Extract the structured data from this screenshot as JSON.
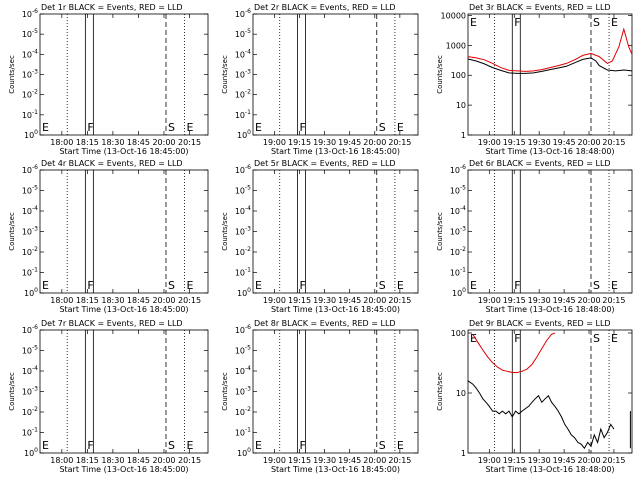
{
  "chart_data": {
    "type": "line",
    "grid": "3x3",
    "panels": [
      {
        "id": "det1",
        "title": "Det 1r BLACK = Events, RED = LLD",
        "ylabel": "Counts/sec",
        "xlabel": "Start Time (13-Oct-16 18:45:00)",
        "x_ticks": [
          "18:00",
          "18:15",
          "18:30",
          "18:45",
          "20:00",
          "20:15"
        ],
        "y_ticks": [
          "10^0",
          "10^-1",
          "10^-2",
          "10^-3",
          "10^-4",
          "10^-5",
          "10^-6"
        ],
        "y_scale": "log",
        "y_ticks_log": [
          0,
          -1,
          -2,
          -3,
          -4,
          -5,
          -6
        ],
        "ylim_log": [
          0,
          -6
        ],
        "markers": [
          {
            "label": "E",
            "style": "dotted"
          },
          {
            "label": "F",
            "style": "solid"
          },
          {
            "label": "S",
            "style": "dashed"
          },
          {
            "label": "E",
            "style": "dotted"
          }
        ],
        "series": []
      },
      {
        "id": "det2",
        "title": "Det 2r BLACK = Events, RED = LLD",
        "ylabel": "Counts/sec",
        "xlabel": "Start Time (13-Oct-16 18:45:00)",
        "x_ticks": [
          "19:00",
          "19:15",
          "19:30",
          "19:45",
          "20:00",
          "20:15"
        ],
        "y_ticks": [
          "10^0",
          "10^-1",
          "10^-2",
          "10^-3",
          "10^-4",
          "10^-5",
          "10^-6"
        ],
        "y_scale": "log",
        "y_ticks_log": [
          0,
          -1,
          -2,
          -3,
          -4,
          -5,
          -6
        ],
        "ylim_log": [
          0,
          -6
        ],
        "markers": [
          {
            "label": "E",
            "style": "dotted"
          },
          {
            "label": "F",
            "style": "solid"
          },
          {
            "label": "S",
            "style": "dashed"
          },
          {
            "label": "E",
            "style": "dotted"
          }
        ],
        "series": []
      },
      {
        "id": "det3",
        "title": "Det 3r BLACK = Events, RED = LLD",
        "ylabel": "Counts/sec",
        "xlabel": "Start Time (13-Oct-16 18:48:00)",
        "x_ticks": [
          "19:00",
          "19:15",
          "19:30",
          "19:45",
          "20:00",
          "20:15"
        ],
        "y_ticks": [
          "1",
          "10",
          "100",
          "1000",
          "10000"
        ],
        "y_scale": "log",
        "y_ticks_log": [
          0,
          1,
          2,
          3,
          4
        ],
        "ylim_log": [
          0,
          4.05
        ],
        "markers": [
          {
            "label": "E",
            "style": "dotted"
          },
          {
            "label": "F",
            "style": "solid"
          },
          {
            "label": "S",
            "style": "dashed"
          },
          {
            "label": "E",
            "style": "dotted"
          }
        ],
        "series": [
          {
            "color": "#000000",
            "x": [
              0,
              5,
              10,
              15,
              20,
              25,
              30,
              35,
              40,
              45,
              50,
              55,
              60,
              65,
              70,
              75,
              78,
              80,
              85,
              90,
              95,
              100
            ],
            "y": [
              350,
              300,
              240,
              180,
              145,
              120,
              115,
              115,
              120,
              135,
              155,
              175,
              200,
              260,
              340,
              380,
              300,
              210,
              150,
              140,
              150,
              140
            ]
          },
          {
            "color": "#e00000",
            "x": [
              0,
              5,
              10,
              15,
              20,
              25,
              30,
              35,
              40,
              45,
              50,
              55,
              60,
              65,
              70,
              75,
              80,
              85,
              88,
              92,
              95,
              98,
              100
            ],
            "y": [
              420,
              380,
              330,
              250,
              180,
              145,
              140,
              135,
              140,
              155,
              180,
              210,
              250,
              330,
              460,
              540,
              420,
              250,
              300,
              900,
              3500,
              900,
              500
            ]
          }
        ]
      },
      {
        "id": "det4",
        "title": "Det 4r BLACK = Events, RED = LLD",
        "ylabel": "Counts/sec",
        "xlabel": "Start Time (13-Oct-16 18:45:00)",
        "x_ticks": [
          "18:00",
          "18:15",
          "18:30",
          "18:45",
          "20:00",
          "20:15"
        ],
        "y_ticks": [
          "10^0",
          "10^-1",
          "10^-2",
          "10^-3",
          "10^-4",
          "10^-5",
          "10^-6"
        ],
        "y_scale": "log",
        "y_ticks_log": [
          0,
          -1,
          -2,
          -3,
          -4,
          -5,
          -6
        ],
        "ylim_log": [
          0,
          -6
        ],
        "markers": [
          {
            "label": "E",
            "style": "dotted"
          },
          {
            "label": "F",
            "style": "solid"
          },
          {
            "label": "S",
            "style": "dashed"
          },
          {
            "label": "E",
            "style": "dotted"
          }
        ],
        "series": []
      },
      {
        "id": "det5",
        "title": "Det 5r BLACK = Events, RED = LLD",
        "ylabel": "Counts/sec",
        "xlabel": "Start Time (13-Oct-16 18:45:00)",
        "x_ticks": [
          "19:00",
          "19:15",
          "19:30",
          "19:45",
          "20:00",
          "20:15"
        ],
        "y_ticks": [
          "10^0",
          "10^-1",
          "10^-2",
          "10^-3",
          "10^-4",
          "10^-5",
          "10^-6"
        ],
        "y_scale": "log",
        "y_ticks_log": [
          0,
          -1,
          -2,
          -3,
          -4,
          -5,
          -6
        ],
        "ylim_log": [
          0,
          -6
        ],
        "markers": [
          {
            "label": "E",
            "style": "dotted"
          },
          {
            "label": "F",
            "style": "solid"
          },
          {
            "label": "S",
            "style": "dashed"
          },
          {
            "label": "E",
            "style": "dotted"
          }
        ],
        "series": []
      },
      {
        "id": "det6",
        "title": "Det 6r BLACK = Events, RED = LLD",
        "ylabel": "Counts/sec",
        "xlabel": "Start Time (13-Oct-16 18:48:00)",
        "x_ticks": [
          "19:00",
          "19:15",
          "19:30",
          "19:45",
          "20:00",
          "20:15"
        ],
        "y_ticks": [
          "10^0",
          "10^-1",
          "10^-2",
          "10^-3",
          "10^-4",
          "10^-5",
          "10^-6"
        ],
        "y_scale": "log",
        "y_ticks_log": [
          0,
          -1,
          -2,
          -3,
          -4,
          -5,
          -6
        ],
        "ylim_log": [
          0,
          -6
        ],
        "markers": [
          {
            "label": "E",
            "style": "dotted"
          },
          {
            "label": "F",
            "style": "solid"
          },
          {
            "label": "S",
            "style": "dashed"
          },
          {
            "label": "E",
            "style": "dotted"
          }
        ],
        "series": []
      },
      {
        "id": "det7",
        "title": "Det 7r BLACK = Events, RED = LLD",
        "ylabel": "Counts/sec",
        "xlabel": "Start Time (13-Oct-16 18:45:00)",
        "x_ticks": [
          "18:00",
          "18:15",
          "18:30",
          "18:45",
          "20:00",
          "20:15"
        ],
        "y_ticks": [
          "10^0",
          "10^-1",
          "10^-2",
          "10^-3",
          "10^-4",
          "10^-5",
          "10^-6"
        ],
        "y_scale": "log",
        "y_ticks_log": [
          0,
          -1,
          -2,
          -3,
          -4,
          -5,
          -6
        ],
        "ylim_log": [
          0,
          -6
        ],
        "markers": [
          {
            "label": "E",
            "style": "dotted"
          },
          {
            "label": "F",
            "style": "solid"
          },
          {
            "label": "S",
            "style": "dashed"
          },
          {
            "label": "E",
            "style": "dotted"
          }
        ],
        "series": []
      },
      {
        "id": "det8",
        "title": "Det 8r BLACK = Events, RED = LLD",
        "ylabel": "Counts/sec",
        "xlabel": "Start Time (13-Oct-16 18:45:00)",
        "x_ticks": [
          "19:00",
          "19:15",
          "19:30",
          "19:45",
          "20:00",
          "20:15"
        ],
        "y_ticks": [
          "10^0",
          "10^-1",
          "10^-2",
          "10^-3",
          "10^-4",
          "10^-5",
          "10^-6"
        ],
        "y_scale": "log",
        "y_ticks_log": [
          0,
          -1,
          -2,
          -3,
          -4,
          -5,
          -6
        ],
        "ylim_log": [
          0,
          -6
        ],
        "markers": [
          {
            "label": "E",
            "style": "dotted"
          },
          {
            "label": "F",
            "style": "solid"
          },
          {
            "label": "S",
            "style": "dashed"
          },
          {
            "label": "E",
            "style": "dotted"
          }
        ],
        "series": []
      },
      {
        "id": "det9",
        "title": "Det 9r BLACK = Events, RED = LLD",
        "ylabel": "Counts/sec",
        "xlabel": "Start Time (13-Oct-16 18:48:00)",
        "x_ticks": [
          "19:00",
          "19:15",
          "19:30",
          "19:45",
          "20:00",
          "20:15"
        ],
        "y_ticks": [
          "1",
          "10",
          "100"
        ],
        "y_scale": "log",
        "y_ticks_log": [
          0,
          1,
          2
        ],
        "ylim_log": [
          0,
          2.05
        ],
        "markers": [
          {
            "label": "E",
            "style": "dotted"
          },
          {
            "label": "F",
            "style": "solid"
          },
          {
            "label": "S",
            "style": "dashed"
          },
          {
            "label": "E",
            "style": "dotted"
          }
        ],
        "series": [
          {
            "color": "#e00000",
            "x": [
              3,
              6,
              9,
              12,
              15,
              18,
              21,
              24,
              27,
              30,
              33,
              36,
              39,
              42,
              45,
              48,
              51,
              53
            ],
            "y": [
              95,
              70,
              52,
              40,
              32,
              27,
              24,
              23,
              22,
              22,
              23,
              25,
              30,
              40,
              55,
              75,
              95,
              100
            ]
          },
          {
            "color": "#000000",
            "x": [
              0,
              3,
              5,
              7,
              9,
              11,
              13,
              15,
              17,
              19,
              21,
              23,
              25,
              27,
              29,
              31,
              33,
              35,
              37,
              39,
              41,
              43,
              45,
              47,
              49,
              51,
              53,
              55,
              57,
              59,
              61,
              63,
              65,
              67,
              69,
              71,
              73,
              75,
              77,
              79,
              81,
              83,
              85,
              87,
              89
            ],
            "y": [
              16,
              14,
              12,
              10,
              8,
              7,
              6,
              5,
              5,
              4.5,
              5,
              4.5,
              5,
              4,
              5,
              4.5,
              5,
              5.5,
              6,
              7,
              8,
              9,
              7,
              8,
              9,
              7,
              6,
              5,
              4,
              3,
              2.5,
              2,
              1.8,
              1.5,
              1.4,
              1.2,
              1.5,
              1.3,
              2,
              1.5,
              2.5,
              1.8,
              2.2,
              3,
              2.5
            ]
          },
          {
            "color": "#000000",
            "x": [
              99,
              99,
              99
            ],
            "y": [
              1.2,
              5,
              2
            ]
          }
        ]
      }
    ]
  }
}
